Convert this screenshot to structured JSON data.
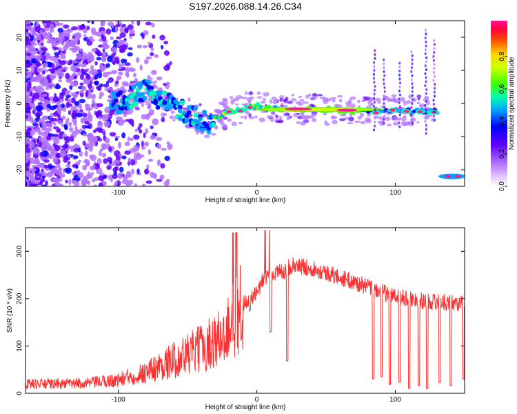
{
  "title": "S197.2026.088.14.26.C34",
  "chart_data": [
    {
      "type": "heatmap",
      "name": "spectrogram",
      "xlabel": "Height of straight line (km)",
      "ylabel": "Frequency (Hz)",
      "xlim": [
        -167,
        150
      ],
      "ylim": [
        -25,
        25
      ],
      "xticks": [
        -100,
        0,
        100
      ],
      "yticks": [
        -20,
        -10,
        0,
        10,
        20
      ],
      "colorbar": {
        "label": "Normalized spectral amplitude",
        "range": [
          0,
          1
        ],
        "ticks": [
          "0.0",
          "0.2",
          "0.4",
          "0.6",
          "0.8"
        ],
        "colormap": [
          "#ffffff",
          "#e8d0ff",
          "#8a2be2",
          "#4b00ff",
          "#0000ff",
          "#00bfff",
          "#00ff80",
          "#7fff00",
          "#ffff00",
          "#ffa500",
          "#ff0000",
          "#ff1493"
        ]
      },
      "ridge": [
        {
          "x": -100,
          "freq": 0
        },
        {
          "x": -80,
          "freq": 4
        },
        {
          "x": -60,
          "freq": -1
        },
        {
          "x": -35,
          "freq": -6
        },
        {
          "x": -20,
          "freq": -2.5
        },
        {
          "x": 0,
          "freq": -0.5
        },
        {
          "x": 20,
          "freq": -1.5
        },
        {
          "x": 60,
          "freq": -2
        },
        {
          "x": 75,
          "freq": -2.5
        },
        {
          "x": 100,
          "freq": -2
        },
        {
          "x": 130,
          "freq": -2.5
        },
        {
          "x": 135,
          "freq": -22
        },
        {
          "x": 148,
          "freq": -22
        }
      ]
    },
    {
      "type": "line",
      "name": "snr",
      "xlabel": "Height of straight line (km)",
      "ylabel": "SNR (10 * v/v)",
      "xlim": [
        -167,
        150
      ],
      "ylim": [
        0,
        350
      ],
      "xticks": [
        -100,
        0,
        100
      ],
      "yticks": [
        0,
        100,
        200,
        300
      ],
      "color": "#ff3030",
      "series": [
        {
          "name": "SNR",
          "x": [
            -167,
            -140,
            -120,
            -100,
            -80,
            -60,
            -40,
            -25,
            -15,
            -10,
            -5,
            0,
            5,
            10,
            20,
            25,
            40,
            60,
            80,
            100,
            120,
            150
          ],
          "values": [
            20,
            20,
            22,
            28,
            45,
            70,
            95,
            120,
            160,
            190,
            200,
            210,
            240,
            250,
            260,
            270,
            265,
            245,
            225,
            205,
            195,
            190
          ]
        }
      ]
    }
  ]
}
